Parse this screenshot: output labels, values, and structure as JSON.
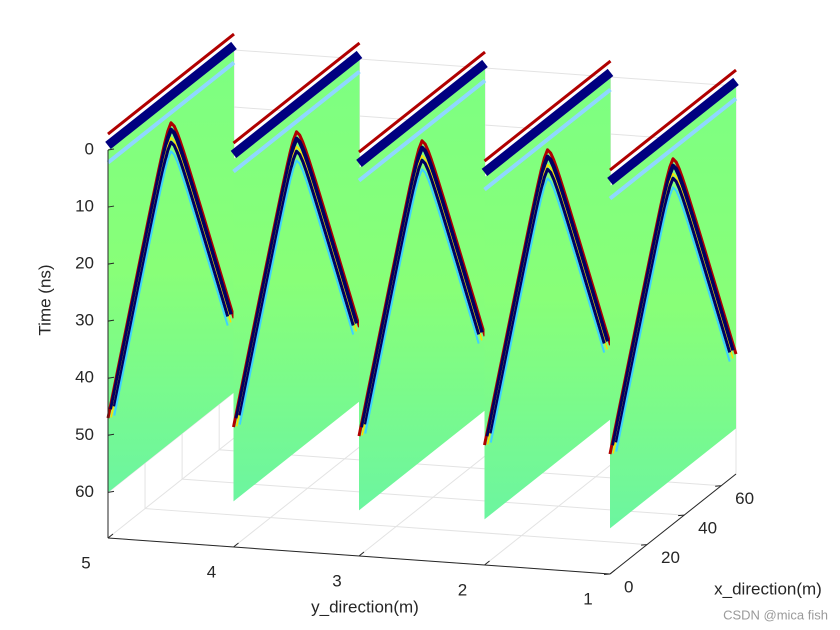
{
  "chart_data": {
    "type": "slice3d",
    "xlabel": "x_direction(m)",
    "ylabel": "y_direction(m)",
    "zlabel": "Time (ns)",
    "xlim": [
      0,
      68
    ],
    "ylim": [
      1,
      5
    ],
    "zlim": [
      0,
      68
    ],
    "xticks": [
      0,
      20,
      40,
      60
    ],
    "yticks": [
      1,
      2,
      3,
      4,
      5
    ],
    "zticks": [
      0,
      10,
      20,
      30,
      40,
      50,
      60
    ],
    "z_reversed": true,
    "slice_y": [
      5,
      4,
      3,
      2,
      1
    ],
    "slice_zlim": [
      0,
      60
    ],
    "grid": true
  },
  "watermark": "CSDN @mica fish"
}
